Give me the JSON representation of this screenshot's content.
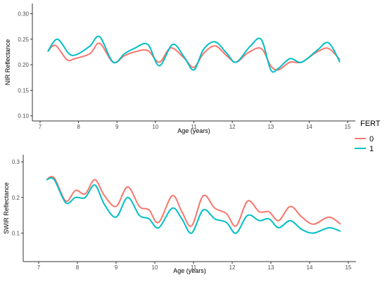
{
  "colors": {
    "series0": "#F8766D",
    "series1": "#00BFC4",
    "axis": "#333333",
    "tick_text": "#4d4d4d"
  },
  "legend": {
    "title": "FERT",
    "entries": [
      "0",
      "1"
    ]
  },
  "chart_data": [
    {
      "type": "line",
      "panel": "top",
      "xlabel": "Age (years)",
      "ylabel": "NIR Reflectance",
      "xlim": [
        6.8,
        15.2
      ],
      "ylim": [
        0.09,
        0.32
      ],
      "xticks": [
        7,
        8,
        9,
        10,
        11,
        12,
        13,
        14,
        15
      ],
      "yticks": [
        0.1,
        0.15,
        0.2,
        0.25,
        0.3
      ],
      "ytick_labels": [
        "0.10",
        "0.15",
        "0.20",
        "0.25",
        "0.30"
      ],
      "grid": false,
      "legend_position": "right",
      "series": [
        {
          "name": "0",
          "x": [
            7.2,
            7.4,
            7.7,
            7.9,
            8.3,
            8.55,
            8.9,
            9.2,
            9.45,
            9.8,
            10.1,
            10.4,
            10.75,
            11.0,
            11.25,
            11.55,
            11.85,
            12.1,
            12.4,
            12.75,
            13.0,
            13.2,
            13.5,
            13.8,
            14.2,
            14.5,
            14.8
          ],
          "y": [
            0.226,
            0.238,
            0.21,
            0.212,
            0.222,
            0.242,
            0.205,
            0.218,
            0.225,
            0.228,
            0.205,
            0.233,
            0.213,
            0.195,
            0.222,
            0.237,
            0.218,
            0.205,
            0.223,
            0.232,
            0.198,
            0.19,
            0.205,
            0.205,
            0.225,
            0.232,
            0.21
          ]
        },
        {
          "name": "1",
          "x": [
            7.2,
            7.45,
            7.75,
            7.95,
            8.3,
            8.55,
            8.9,
            9.2,
            9.45,
            9.8,
            10.1,
            10.45,
            10.75,
            11.0,
            11.25,
            11.55,
            11.85,
            12.1,
            12.45,
            12.75,
            13.0,
            13.2,
            13.5,
            13.8,
            14.2,
            14.5,
            14.8
          ],
          "y": [
            0.226,
            0.25,
            0.222,
            0.22,
            0.237,
            0.255,
            0.205,
            0.222,
            0.232,
            0.24,
            0.198,
            0.24,
            0.215,
            0.19,
            0.23,
            0.245,
            0.223,
            0.205,
            0.235,
            0.25,
            0.19,
            0.193,
            0.212,
            0.205,
            0.228,
            0.243,
            0.205
          ]
        }
      ]
    },
    {
      "type": "line",
      "panel": "bottom",
      "xlabel": "Age (years)",
      "ylabel": "SWIR Reflectance",
      "xlim": [
        6.6,
        15.2
      ],
      "ylim": [
        0.02,
        0.32
      ],
      "xticks": [
        7,
        8,
        9,
        10,
        11,
        12,
        13,
        14,
        15
      ],
      "yticks": [
        0.1,
        0.2,
        0.3
      ],
      "ytick_labels": [
        "0.1",
        "0.2",
        "0.3"
      ],
      "grid": false,
      "legend_position": "right",
      "series": [
        {
          "name": "0",
          "x": [
            7.2,
            7.4,
            7.7,
            7.95,
            8.2,
            8.45,
            8.7,
            9.0,
            9.3,
            9.6,
            9.85,
            10.1,
            10.45,
            10.7,
            10.95,
            11.25,
            11.55,
            11.85,
            12.1,
            12.4,
            12.7,
            12.95,
            13.2,
            13.5,
            13.8,
            14.1,
            14.5,
            14.8
          ],
          "y": [
            0.25,
            0.255,
            0.19,
            0.22,
            0.21,
            0.25,
            0.205,
            0.175,
            0.23,
            0.175,
            0.165,
            0.13,
            0.205,
            0.16,
            0.12,
            0.205,
            0.17,
            0.155,
            0.12,
            0.19,
            0.16,
            0.16,
            0.135,
            0.175,
            0.145,
            0.125,
            0.145,
            0.125
          ]
        },
        {
          "name": "1",
          "x": [
            7.2,
            7.4,
            7.7,
            7.95,
            8.2,
            8.45,
            8.7,
            9.0,
            9.3,
            9.6,
            9.85,
            10.1,
            10.45,
            10.7,
            10.95,
            11.25,
            11.55,
            11.85,
            12.1,
            12.4,
            12.7,
            12.95,
            13.2,
            13.5,
            13.8,
            14.1,
            14.5,
            14.8
          ],
          "y": [
            0.25,
            0.25,
            0.185,
            0.2,
            0.2,
            0.235,
            0.18,
            0.145,
            0.2,
            0.15,
            0.14,
            0.115,
            0.17,
            0.14,
            0.1,
            0.165,
            0.14,
            0.13,
            0.1,
            0.15,
            0.135,
            0.14,
            0.115,
            0.135,
            0.11,
            0.1,
            0.115,
            0.105
          ]
        }
      ]
    }
  ]
}
